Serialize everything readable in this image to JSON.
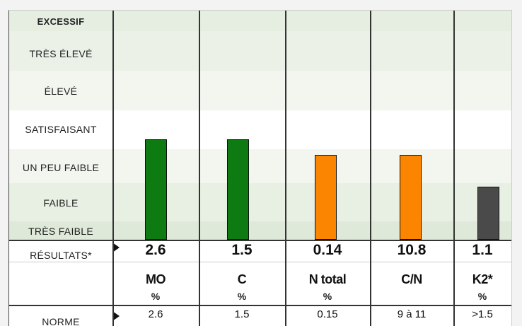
{
  "levels": [
    "EXCESSIF",
    "TRÈS ÉLEVÉ",
    "ÉLEVÉ",
    "SATISFAISANT",
    "UN PEU FAIBLE",
    "FAIBLE",
    "TRÈS FAIBLE"
  ],
  "results_label": "RÉSULTATS*",
  "norm_label": "NORME",
  "columns": [
    {
      "name": "MO",
      "unit": "%",
      "result": "2.6",
      "norm": "2.6"
    },
    {
      "name": "C",
      "unit": "%",
      "result": "1.5",
      "norm": "1.5"
    },
    {
      "name": "N total",
      "unit": "%",
      "result": "0.14",
      "norm": "0.15"
    },
    {
      "name": "C/N",
      "result": "10.8",
      "norm": "9 à 11"
    },
    {
      "name": "K2*",
      "unit": "%",
      "result": "1.1",
      "norm": ">1.5"
    }
  ]
}
